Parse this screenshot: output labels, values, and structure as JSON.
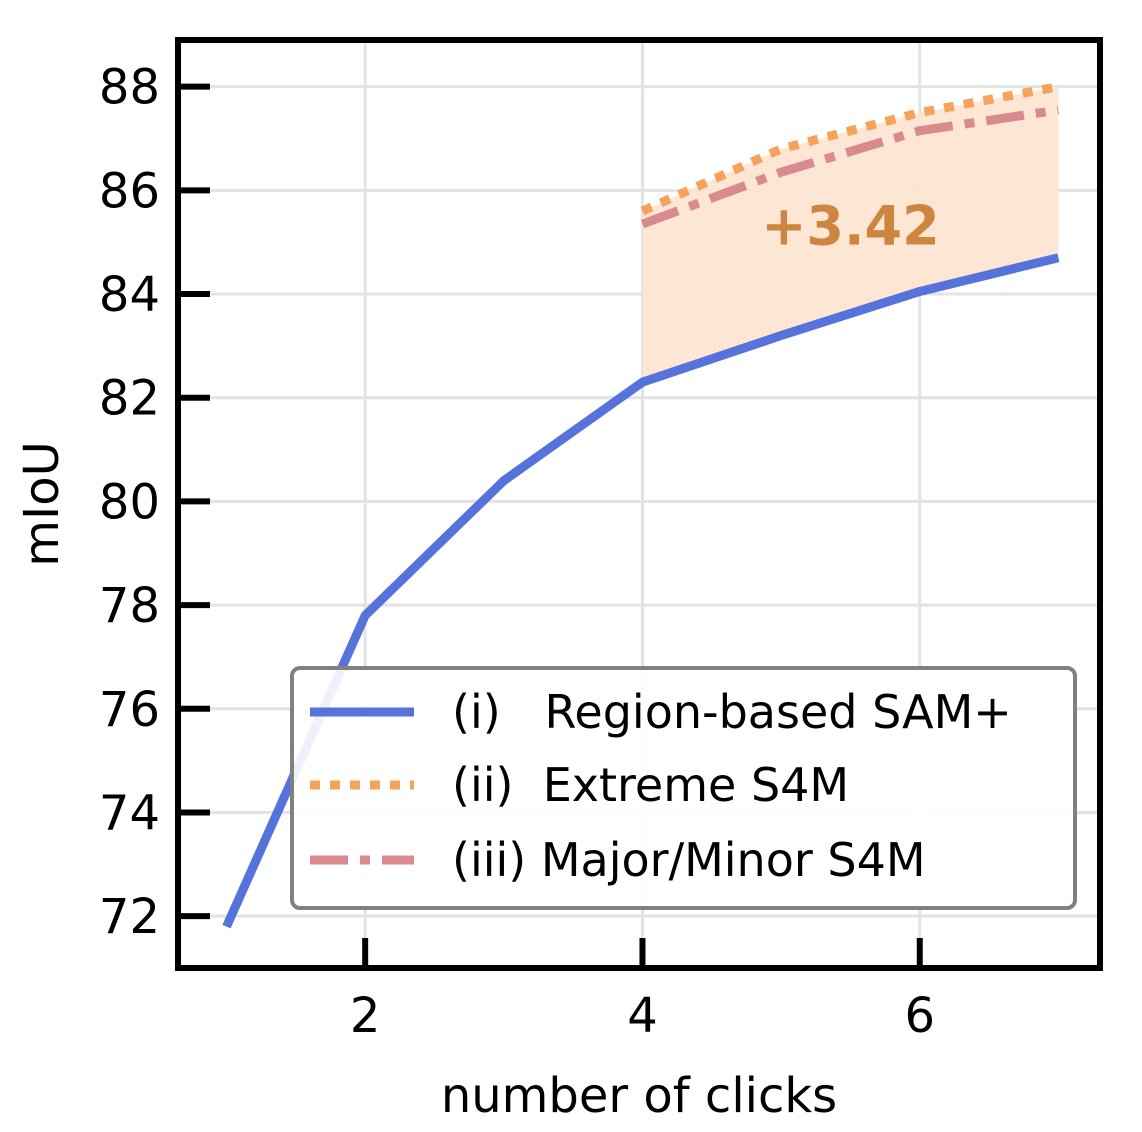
{
  "chart_data": {
    "type": "line",
    "xlabel": "number of clicks",
    "ylabel": "mIoU",
    "xlim": [
      0.65,
      7.3
    ],
    "ylim": [
      71.0,
      88.9
    ],
    "xticks": [
      2,
      4,
      6
    ],
    "yticks": [
      72,
      74,
      76,
      78,
      80,
      82,
      84,
      86,
      88
    ],
    "grid": true,
    "legend_position": "lower-right",
    "series": [
      {
        "name": "(i)   Region-based SAM+",
        "style": "solid",
        "color": "#5673dc",
        "x": [
          1,
          2,
          3,
          4,
          5,
          6,
          7
        ],
        "y": [
          71.8,
          77.8,
          80.4,
          82.3,
          83.2,
          84.05,
          84.7
        ]
      },
      {
        "name": "(ii)  Extreme S4M",
        "style": "dotted",
        "color": "#f5a25d",
        "x": [
          4,
          5,
          6,
          7
        ],
        "y": [
          85.6,
          86.8,
          87.5,
          88.0
        ]
      },
      {
        "name": "(iii) Major/Minor S4M",
        "style": "dashdot",
        "color": "#d98a8e",
        "x": [
          4,
          5,
          6,
          7
        ],
        "y": [
          85.35,
          86.35,
          87.15,
          87.55
        ]
      }
    ],
    "fill_between": {
      "color": "#fde3cf",
      "x": [
        4,
        5,
        6,
        7
      ],
      "upper": [
        85.6,
        86.8,
        87.5,
        88.0
      ],
      "lower": [
        82.3,
        83.2,
        84.05,
        84.7
      ]
    },
    "annotations": [
      {
        "text": "+3.42",
        "x": 5.5,
        "y": 85.3,
        "color": "#cd853f"
      }
    ]
  }
}
